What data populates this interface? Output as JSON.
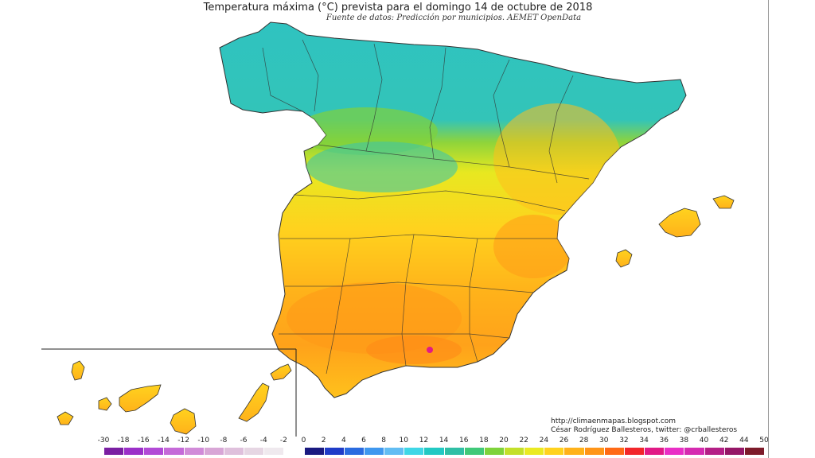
{
  "title": "Temperatura máxima (°C) prevista para el domingo 14 de octubre de 2018",
  "subtitle": "Fuente de datos: Predicción por municipios. AEMET OpenData",
  "credits": {
    "line1": "http://climaenmapas.blogspot.com",
    "line2": "César Rodríguez Ballesteros, twitter: @crballesteros"
  },
  "legend": {
    "ticks": [
      "-30",
      "-18",
      "-16",
      "-14",
      "-12",
      "-10",
      "-8",
      "-6",
      "-4",
      "-2",
      "0",
      "2",
      "4",
      "6",
      "8",
      "10",
      "12",
      "14",
      "16",
      "18",
      "20",
      "22",
      "24",
      "26",
      "28",
      "30",
      "32",
      "34",
      "36",
      "38",
      "40",
      "42",
      "44",
      "50"
    ],
    "colors": [
      "#7a1fa2",
      "#9b30c8",
      "#b24ad6",
      "#c56ad8",
      "#d18bd8",
      "#d8a6d6",
      "#dfc0dc",
      "#e6d6e3",
      "#efe9ee",
      "#ffffff",
      "#1a1a80",
      "#1f3cc8",
      "#2a6be0",
      "#3f98ef",
      "#62bdf3",
      "#3fd7e6",
      "#22c9c3",
      "#2fbfa5",
      "#40c979",
      "#7ed33b",
      "#c3e02a",
      "#eaea22",
      "#ffd21e",
      "#ffb21a",
      "#ff9518",
      "#ff6a16",
      "#f2262b",
      "#e11a86",
      "#e92fc6",
      "#d52bb0",
      "#b41f86",
      "#951767",
      "#7d1b2a"
    ],
    "labels": {
      "colorbar": "temperature-colorbar"
    }
  },
  "map": {
    "regions": [
      {
        "name": "galicia-asturias-north",
        "temp_class": "14-16"
      },
      {
        "name": "northern-plateau",
        "temp_class": "16-20"
      },
      {
        "name": "ebro-east",
        "temp_class": "22-26"
      },
      {
        "name": "central-south",
        "temp_class": "24-28"
      },
      {
        "name": "guadalquivir",
        "temp_class": "28-30"
      },
      {
        "name": "baleares",
        "temp_class": "22-24"
      },
      {
        "name": "canarias",
        "temp_class": "24-28"
      }
    ]
  }
}
